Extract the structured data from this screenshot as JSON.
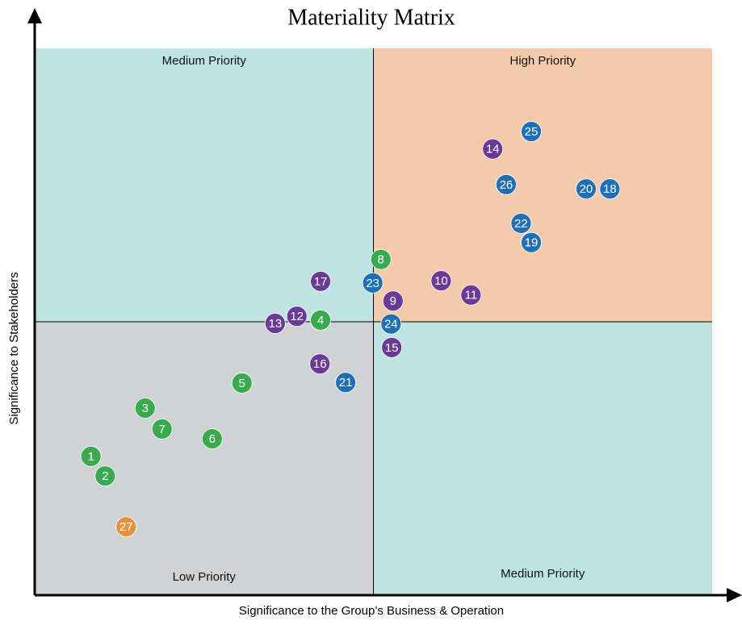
{
  "chart_data": {
    "type": "scatter",
    "title": "Materiality Matrix",
    "x_label": "Significance to the Group’s Business & Operation",
    "y_label": "Significance to Stakeholders",
    "xlim": [
      0,
      100
    ],
    "ylim": [
      0,
      100
    ],
    "xsplit": 50,
    "ysplit": 50,
    "quadrants": [
      {
        "label": "Medium Priority",
        "color": "#bde3e2"
      },
      {
        "label": "High Priority",
        "color": "#f4cbaa"
      },
      {
        "label": "Low Priority",
        "color": "#d1d2d4"
      },
      {
        "label": "Medium Priority",
        "color": "#bde3e2"
      }
    ],
    "points": [
      {
        "label": "1",
        "x": 8.3,
        "y": 25.4,
        "color": "#3aaa4f"
      },
      {
        "label": "2",
        "x": 10.4,
        "y": 21.8,
        "color": "#3aaa4f"
      },
      {
        "label": "3",
        "x": 16.3,
        "y": 34.2,
        "color": "#3aaa4f"
      },
      {
        "label": "4",
        "x": 42.2,
        "y": 50.3,
        "color": "#3aaa4f"
      },
      {
        "label": "5",
        "x": 30.6,
        "y": 38.8,
        "color": "#3aaa4f"
      },
      {
        "label": "6",
        "x": 26.2,
        "y": 28.6,
        "color": "#3aaa4f"
      },
      {
        "label": "7",
        "x": 18.8,
        "y": 30.4,
        "color": "#3aaa4f"
      },
      {
        "label": "8",
        "x": 51.1,
        "y": 61.4,
        "color": "#3aaa4f"
      },
      {
        "label": "9",
        "x": 52.9,
        "y": 53.8,
        "color": "#6b3a97"
      },
      {
        "label": "10",
        "x": 60.0,
        "y": 57.5,
        "color": "#6b3a97"
      },
      {
        "label": "11",
        "x": 64.4,
        "y": 54.9,
        "color": "#6b3a97"
      },
      {
        "label": "12",
        "x": 38.7,
        "y": 51.0,
        "color": "#6b3a97"
      },
      {
        "label": "13",
        "x": 35.5,
        "y": 49.7,
        "color": "#6b3a97"
      },
      {
        "label": "14",
        "x": 67.6,
        "y": 81.6,
        "color": "#6b3a97"
      },
      {
        "label": "15",
        "x": 52.7,
        "y": 45.3,
        "color": "#6b3a97"
      },
      {
        "label": "16",
        "x": 42.1,
        "y": 42.3,
        "color": "#6b3a97"
      },
      {
        "label": "17",
        "x": 42.2,
        "y": 57.4,
        "color": "#6b3a97"
      },
      {
        "label": "18",
        "x": 84.9,
        "y": 74.3,
        "color": "#1f6fb5"
      },
      {
        "label": "19",
        "x": 73.3,
        "y": 64.5,
        "color": "#1f6fb5"
      },
      {
        "label": "20",
        "x": 81.4,
        "y": 74.3,
        "color": "#1f6fb5"
      },
      {
        "label": "21",
        "x": 45.9,
        "y": 38.9,
        "color": "#1f6fb5"
      },
      {
        "label": "22",
        "x": 71.8,
        "y": 68.0,
        "color": "#1f6fb5"
      },
      {
        "label": "23",
        "x": 49.9,
        "y": 57.1,
        "color": "#1f6fb5"
      },
      {
        "label": "24",
        "x": 52.6,
        "y": 49.6,
        "color": "#1f6fb5"
      },
      {
        "label": "25",
        "x": 73.3,
        "y": 84.8,
        "color": "#1f6fb5"
      },
      {
        "label": "26",
        "x": 69.6,
        "y": 75.1,
        "color": "#1f6fb5"
      },
      {
        "label": "27",
        "x": 13.5,
        "y": 12.5,
        "color": "#e8913a"
      }
    ]
  }
}
